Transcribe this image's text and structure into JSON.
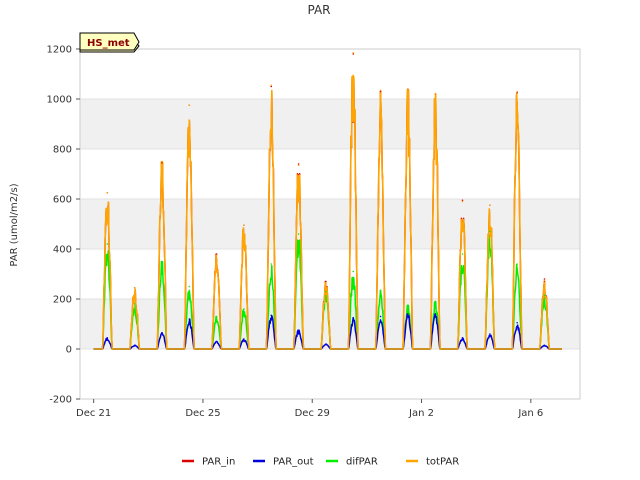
{
  "chart_data": {
    "type": "line",
    "title": "PAR",
    "xlabel": "",
    "ylabel": "PAR (umol/m2/s)",
    "station_label": "HS_met",
    "x_unit": "days since Dec 21",
    "xlim": [
      -0.5,
      17.8
    ],
    "ylim": [
      -200,
      1200
    ],
    "yticks": [
      -200,
      0,
      200,
      400,
      600,
      800,
      1000,
      1200
    ],
    "xticks": [
      {
        "value": 0,
        "label": "Dec 21"
      },
      {
        "value": 4,
        "label": "Dec 25"
      },
      {
        "value": 8,
        "label": "Dec 29"
      },
      {
        "value": 12,
        "label": "Jan 2"
      },
      {
        "value": 16,
        "label": "Jan 6"
      }
    ],
    "grid": true,
    "legend_position": "bottom",
    "daily_peaks": {
      "day_index": [
        0.5,
        1.5,
        2.5,
        3.5,
        4.5,
        5.5,
        6.5,
        7.5,
        8.5,
        9.5,
        10.5,
        11.5,
        12.5,
        13.5,
        14.5,
        15.5,
        16.5
      ],
      "day_label": [
        "Dec 21",
        "Dec 22",
        "Dec 23",
        "Dec 24",
        "Dec 25",
        "Dec 26",
        "Dec 27",
        "Dec 28",
        "Dec 29",
        "Dec 30",
        "Dec 31",
        "Jan 1",
        "Jan 2",
        "Jan 3",
        "Jan 4",
        "Jan 5",
        "Jan 6"
      ]
    },
    "series": [
      {
        "name": "PAR_in",
        "color": "#dd0000",
        "daily_peak": [
          625,
          245,
          745,
          975,
          380,
          495,
          1050,
          740,
          270,
          1180,
          1030,
          1040,
          1020,
          595,
          575,
          1025,
          280
        ]
      },
      {
        "name": "PAR_out",
        "color": "#0000dd",
        "daily_peak": [
          45,
          15,
          65,
          120,
          30,
          40,
          135,
          75,
          20,
          125,
          130,
          140,
          140,
          45,
          60,
          105,
          15
        ]
      },
      {
        "name": "difPAR",
        "color": "#00ee00",
        "daily_peak": [
          420,
          180,
          350,
          250,
          130,
          160,
          340,
          460,
          230,
          310,
          235,
          175,
          190,
          380,
          470,
          340,
          215
        ]
      },
      {
        "name": "totPAR",
        "color": "#ffa500",
        "daily_peak": [
          625,
          245,
          750,
          975,
          375,
          495,
          1055,
          735,
          265,
          1185,
          1035,
          1040,
          1020,
          590,
          575,
          1030,
          275
        ]
      }
    ]
  }
}
